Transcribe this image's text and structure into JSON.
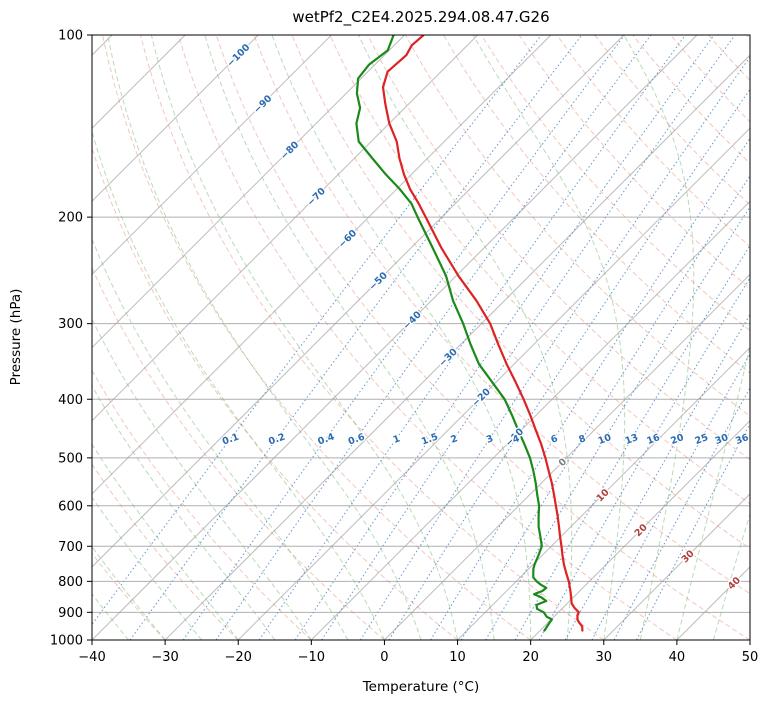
{
  "chart_data": {
    "type": "line",
    "subtype": "skew-t-log-p-sounding",
    "title": "wetPf2_C2E4.2025.294.08.47.G26",
    "xlabel": "Temperature (°C)",
    "ylabel": "Pressure (hPa)",
    "xlim": [
      -40,
      50
    ],
    "pressure_lim": [
      1000,
      100
    ],
    "skew_degrees": 45,
    "grid": true,
    "x_ticks": [
      {
        "v": -40,
        "label": "−40"
      },
      {
        "v": -30,
        "label": "−30"
      },
      {
        "v": -20,
        "label": "−20"
      },
      {
        "v": -10,
        "label": "−10"
      },
      {
        "v": 0,
        "label": "0"
      },
      {
        "v": 10,
        "label": "10"
      },
      {
        "v": 20,
        "label": "20"
      },
      {
        "v": 30,
        "label": "30"
      },
      {
        "v": 40,
        "label": "40"
      },
      {
        "v": 50,
        "label": "50"
      }
    ],
    "p_ticks": [
      {
        "v": 100,
        "label": "100"
      },
      {
        "v": 200,
        "label": "200"
      },
      {
        "v": 300,
        "label": "300"
      },
      {
        "v": 400,
        "label": "400"
      },
      {
        "v": 500,
        "label": "500"
      },
      {
        "v": 600,
        "label": "600"
      },
      {
        "v": 700,
        "label": "700"
      },
      {
        "v": 800,
        "label": "800"
      },
      {
        "v": 900,
        "label": "900"
      },
      {
        "v": 1000,
        "label": "1000"
      }
    ],
    "isotherms": {
      "min": -120,
      "max": 50,
      "step": 10
    },
    "dry_adiabats": {
      "min": -40,
      "max": 190,
      "step": 10
    },
    "moist_adiabats": {
      "min": -40,
      "max": 60,
      "step": 5
    },
    "mixing_ratios": {
      "values": [
        0.1,
        0.2,
        0.4,
        0.6,
        1,
        1.5,
        2,
        3,
        4,
        6,
        8,
        10,
        13,
        16,
        20,
        25,
        30,
        36
      ],
      "label_pressure": 465
    },
    "isotherm_labels": {
      "cold": [
        [
          -100,
          108
        ],
        [
          -90,
          130
        ],
        [
          -80,
          155
        ],
        [
          -70,
          185
        ],
        [
          -60,
          217
        ],
        [
          -50,
          255
        ],
        [
          -40,
          296
        ],
        [
          -30,
          341
        ],
        [
          -20,
          397
        ],
        [
          -10,
          462
        ]
      ],
      "warm": [
        [
          0,
          508
        ],
        [
          10,
          576
        ],
        [
          20,
          658
        ],
        [
          30,
          727
        ],
        [
          40,
          805
        ]
      ]
    },
    "colors": {
      "temperature": "#dd2222",
      "dewpoint": "#1a8a1a",
      "isotherm": "#8f8f8f",
      "grid": "#9c9c9c",
      "dry_adiabat": "#e0826e",
      "moist_adiabat": "#74b874",
      "mixing_ratio": "#4a86c8",
      "cold_label": "#2b6cb0",
      "warm_label": "#b0413e",
      "zero_label": "#808080",
      "axis": "#000000"
    },
    "series": [
      {
        "name": "temperature",
        "color": "#dd2222",
        "points": [
          [
            965,
            25.8
          ],
          [
            950,
            25.2
          ],
          [
            935,
            24.2
          ],
          [
            925,
            23.6
          ],
          [
            910,
            23.0
          ],
          [
            900,
            22.8
          ],
          [
            885,
            21.6
          ],
          [
            870,
            20.6
          ],
          [
            850,
            19.7
          ],
          [
            825,
            18.5
          ],
          [
            800,
            17.2
          ],
          [
            775,
            15.7
          ],
          [
            750,
            14.2
          ],
          [
            725,
            12.8
          ],
          [
            700,
            11.4
          ],
          [
            675,
            9.9
          ],
          [
            650,
            8.4
          ],
          [
            625,
            6.8
          ],
          [
            600,
            5.1
          ],
          [
            575,
            3.3
          ],
          [
            550,
            1.4
          ],
          [
            525,
            -0.7
          ],
          [
            500,
            -2.9
          ],
          [
            475,
            -5.3
          ],
          [
            450,
            -8.0
          ],
          [
            425,
            -10.8
          ],
          [
            400,
            -13.9
          ],
          [
            375,
            -17.3
          ],
          [
            350,
            -21.0
          ],
          [
            325,
            -24.8
          ],
          [
            300,
            -28.8
          ],
          [
            275,
            -33.8
          ],
          [
            250,
            -39.7
          ],
          [
            225,
            -45.8
          ],
          [
            200,
            -52.2
          ],
          [
            190,
            -55.0
          ],
          [
            180,
            -58.1
          ],
          [
            170,
            -61.0
          ],
          [
            160,
            -63.8
          ],
          [
            150,
            -66.5
          ],
          [
            140,
            -70.0
          ],
          [
            130,
            -73.2
          ],
          [
            122,
            -75.8
          ],
          [
            115,
            -77.3
          ],
          [
            108,
            -77.0
          ],
          [
            104,
            -77.6
          ],
          [
            100,
            -77.4
          ]
        ]
      },
      {
        "name": "dewpoint",
        "color": "#1a8a1a",
        "points": [
          [
            965,
            20.6
          ],
          [
            950,
            20.4
          ],
          [
            935,
            20.2
          ],
          [
            925,
            20.1
          ],
          [
            915,
            19.0
          ],
          [
            900,
            18.0
          ],
          [
            888,
            16.6
          ],
          [
            875,
            16.0
          ],
          [
            862,
            16.8
          ],
          [
            850,
            15.6
          ],
          [
            840,
            14.2
          ],
          [
            830,
            14.9
          ],
          [
            820,
            15.0
          ],
          [
            810,
            13.8
          ],
          [
            800,
            12.8
          ],
          [
            788,
            11.8
          ],
          [
            775,
            11.2
          ],
          [
            762,
            10.6
          ],
          [
            750,
            10.2
          ],
          [
            725,
            9.5
          ],
          [
            700,
            8.7
          ],
          [
            675,
            7.2
          ],
          [
            650,
            5.6
          ],
          [
            625,
            4.2
          ],
          [
            600,
            2.8
          ],
          [
            575,
            1.0
          ],
          [
            550,
            -0.8
          ],
          [
            525,
            -2.8
          ],
          [
            500,
            -5.0
          ],
          [
            475,
            -7.6
          ],
          [
            450,
            -10.4
          ],
          [
            425,
            -13.3
          ],
          [
            400,
            -16.5
          ],
          [
            375,
            -20.5
          ],
          [
            350,
            -24.8
          ],
          [
            325,
            -28.6
          ],
          [
            300,
            -32.5
          ],
          [
            275,
            -37.0
          ],
          [
            250,
            -41.4
          ],
          [
            225,
            -47.0
          ],
          [
            200,
            -53.3
          ],
          [
            190,
            -56.0
          ],
          [
            180,
            -59.5
          ],
          [
            170,
            -63.5
          ],
          [
            160,
            -67.5
          ],
          [
            150,
            -71.7
          ],
          [
            140,
            -74.5
          ],
          [
            132,
            -76.1
          ],
          [
            125,
            -78.5
          ],
          [
            118,
            -80.4
          ],
          [
            112,
            -80.8
          ],
          [
            106,
            -80.2
          ],
          [
            100,
            -81.5
          ]
        ]
      }
    ]
  }
}
